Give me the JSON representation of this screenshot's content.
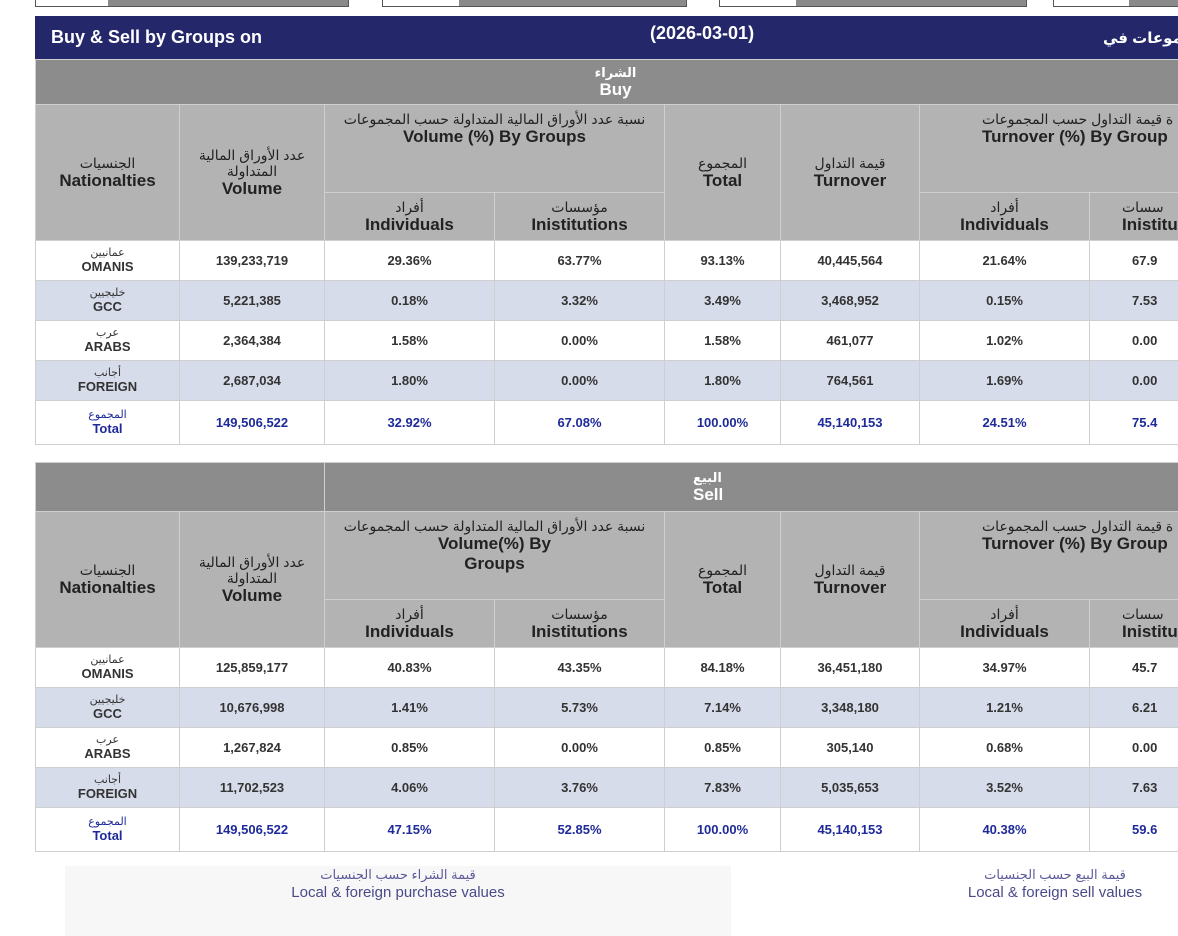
{
  "header": {
    "title_en": "Buy & Sell by Groups on",
    "date": "(2026-03-01)",
    "title_ar": "جموعات في"
  },
  "columns": {
    "nat_ar": "الجنسيات",
    "nat_en": "Nationalties",
    "vol_ar1": "عدد الأوراق المالية",
    "vol_ar2": "المتداولة",
    "vol_en": "Volume",
    "volpct_ar": "نسبة عدد الأوراق المالية المتداولة حسب المجموعات",
    "total_ar": "المجموع",
    "total_en": "Total",
    "turn_ar": "قيمة التداول",
    "turn_en": "Turnover",
    "turnpct_ar": "ة قيمة التداول حسب المجموعات",
    "turnpct_en": "Turnover (%) By Group",
    "ind_ar": "أفراد",
    "ind_en": "Individuals",
    "inst_ar": "مؤسسات",
    "inst_en": "Inistitutions",
    "inst_ar_cut": "سسات",
    "inst_en_cut": "Inistitu"
  },
  "buy": {
    "label_ar": "الشراء",
    "label_en": "Buy",
    "volpct_en": "Volume (%) By Groups",
    "rows": [
      {
        "ar": "عمانيين",
        "en": "OMANIS",
        "volume": "139,233,719",
        "vol_ind": "29.36%",
        "vol_inst": "63.77%",
        "total": "93.13%",
        "turnover": "40,445,564",
        "turn_ind": "21.64%",
        "turn_inst": "67.9"
      },
      {
        "ar": "خليجيين",
        "en": "GCC",
        "volume": "5,221,385",
        "vol_ind": "0.18%",
        "vol_inst": "3.32%",
        "total": "3.49%",
        "turnover": "3,468,952",
        "turn_ind": "0.15%",
        "turn_inst": "7.53"
      },
      {
        "ar": "عرب",
        "en": "ARABS",
        "volume": "2,364,384",
        "vol_ind": "1.58%",
        "vol_inst": "0.00%",
        "total": "1.58%",
        "turnover": "461,077",
        "turn_ind": "1.02%",
        "turn_inst": "0.00"
      },
      {
        "ar": "أجانب",
        "en": "FOREIGN",
        "volume": "2,687,034",
        "vol_ind": "1.80%",
        "vol_inst": "0.00%",
        "total": "1.80%",
        "turnover": "764,561",
        "turn_ind": "1.69%",
        "turn_inst": "0.00"
      },
      {
        "ar": "المجموع",
        "en": "Total",
        "volume": "149,506,522",
        "vol_ind": "32.92%",
        "vol_inst": "67.08%",
        "total": "100.00%",
        "turnover": "45,140,153",
        "turn_ind": "24.51%",
        "turn_inst": "75.4"
      }
    ]
  },
  "sell": {
    "label_ar": "البيع",
    "label_en": "Sell",
    "volpct_en_1": "Volume(%) By",
    "volpct_en_2": "Groups",
    "rows": [
      {
        "ar": "عمانيين",
        "en": "OMANIS",
        "volume": "125,859,177",
        "vol_ind": "40.83%",
        "vol_inst": "43.35%",
        "total": "84.18%",
        "turnover": "36,451,180",
        "turn_ind": "34.97%",
        "turn_inst": "45.7"
      },
      {
        "ar": "خليجيين",
        "en": "GCC",
        "volume": "10,676,998",
        "vol_ind": "1.41%",
        "vol_inst": "5.73%",
        "total": "7.14%",
        "turnover": "3,348,180",
        "turn_ind": "1.21%",
        "turn_inst": "6.21"
      },
      {
        "ar": "عرب",
        "en": "ARABS",
        "volume": "1,267,824",
        "vol_ind": "0.85%",
        "vol_inst": "0.00%",
        "total": "0.85%",
        "turnover": "305,140",
        "turn_ind": "0.68%",
        "turn_inst": "0.00"
      },
      {
        "ar": "أجانب",
        "en": "FOREIGN",
        "volume": "11,702,523",
        "vol_ind": "4.06%",
        "vol_inst": "3.76%",
        "total": "7.83%",
        "turnover": "5,035,653",
        "turn_ind": "3.52%",
        "turn_inst": "7.63"
      },
      {
        "ar": "المجموع",
        "en": "Total",
        "volume": "149,506,522",
        "vol_ind": "47.15%",
        "vol_inst": "52.85%",
        "total": "100.00%",
        "turnover": "45,140,153",
        "turn_ind": "40.38%",
        "turn_inst": "59.6"
      }
    ]
  },
  "footer": {
    "purchase_ar": "قيمة الشراء حسب الجنسيات",
    "purchase_en": "Local & foreign purchase values",
    "sell_ar": "قيمة البيع حسب الجنسيات",
    "sell_en": "Local & foreign sell values"
  }
}
